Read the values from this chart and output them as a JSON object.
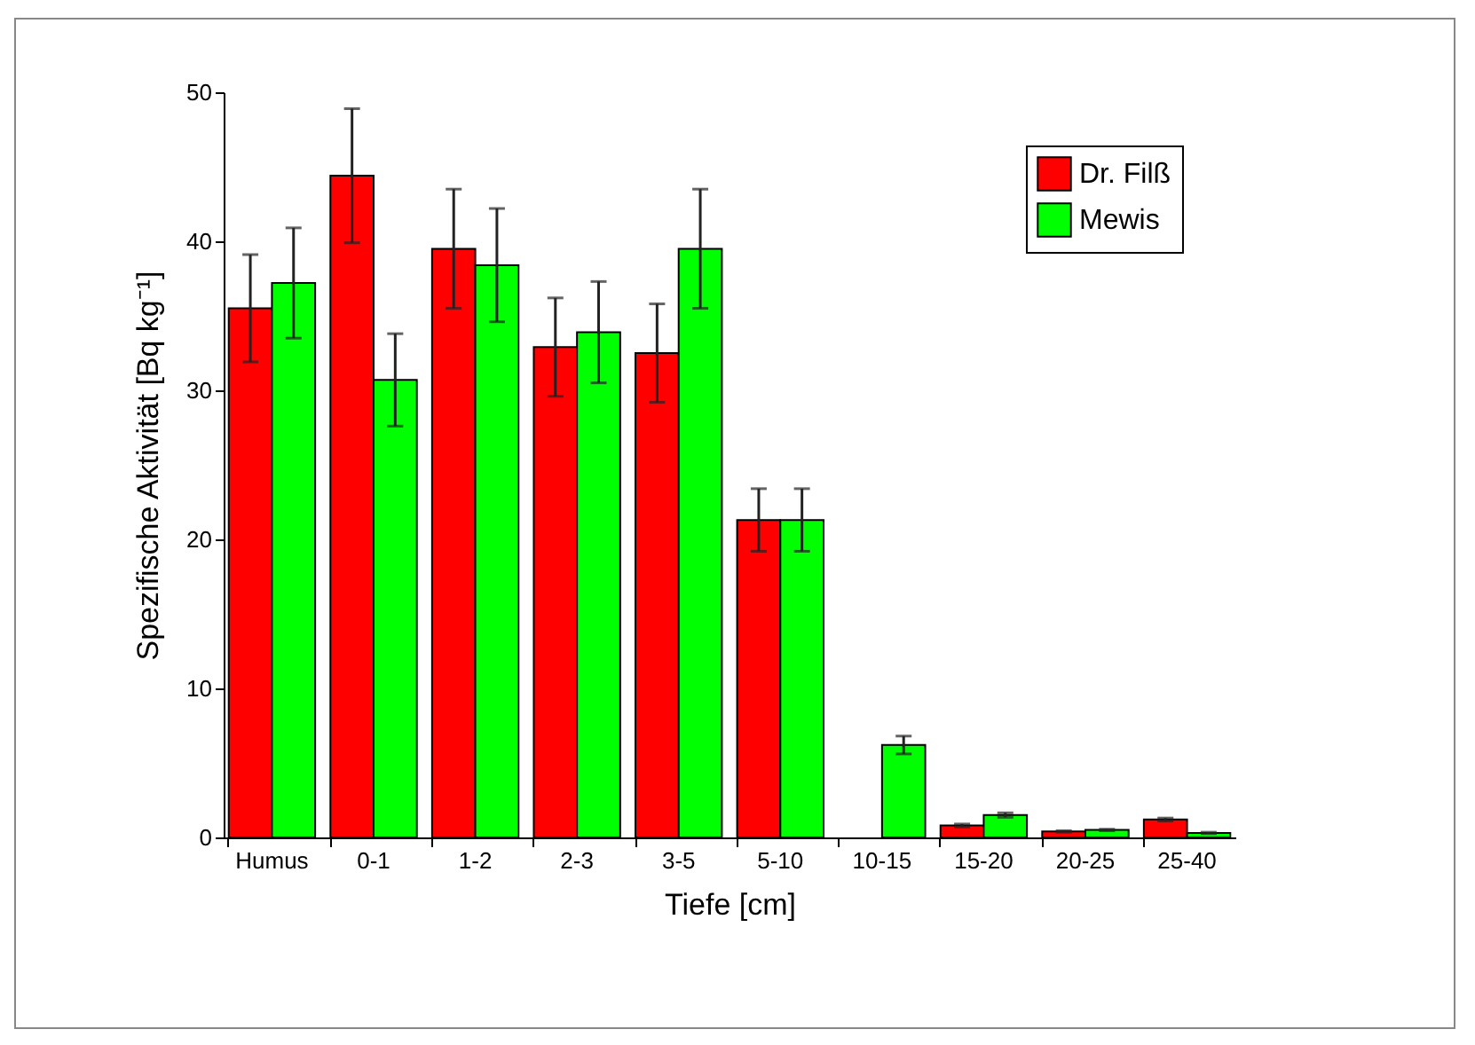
{
  "chart_data": {
    "type": "bar",
    "xlabel": "Tiefe [cm]",
    "ylabel": "Spezifische Aktivität [Bq kg⁻¹]",
    "categories": [
      "Humus",
      "0-1",
      "1-2",
      "2-3",
      "3-5",
      "5-10",
      "10-15",
      "15-20",
      "20-25",
      "25-40"
    ],
    "series": [
      {
        "name": "Dr. Filß",
        "color": "#ff0000",
        "values": [
          35.5,
          44.4,
          39.5,
          32.9,
          32.5,
          21.3,
          null,
          0.8,
          0.4,
          1.2
        ],
        "errors": [
          3.6,
          4.5,
          4.0,
          3.3,
          3.3,
          2.1,
          null,
          0.1,
          0.05,
          0.1
        ]
      },
      {
        "name": "Mewis",
        "color": "#00ff00",
        "values": [
          37.2,
          30.7,
          38.4,
          33.9,
          39.5,
          21.3,
          6.2,
          1.5,
          0.5,
          0.3
        ],
        "errors": [
          3.7,
          3.1,
          3.8,
          3.4,
          4.0,
          2.1,
          0.6,
          0.15,
          0.05,
          0.05
        ]
      }
    ],
    "ylim": [
      0,
      50
    ],
    "yticks": [
      0,
      10,
      20,
      30,
      40,
      50
    ],
    "grid": false,
    "legend": "top right"
  }
}
